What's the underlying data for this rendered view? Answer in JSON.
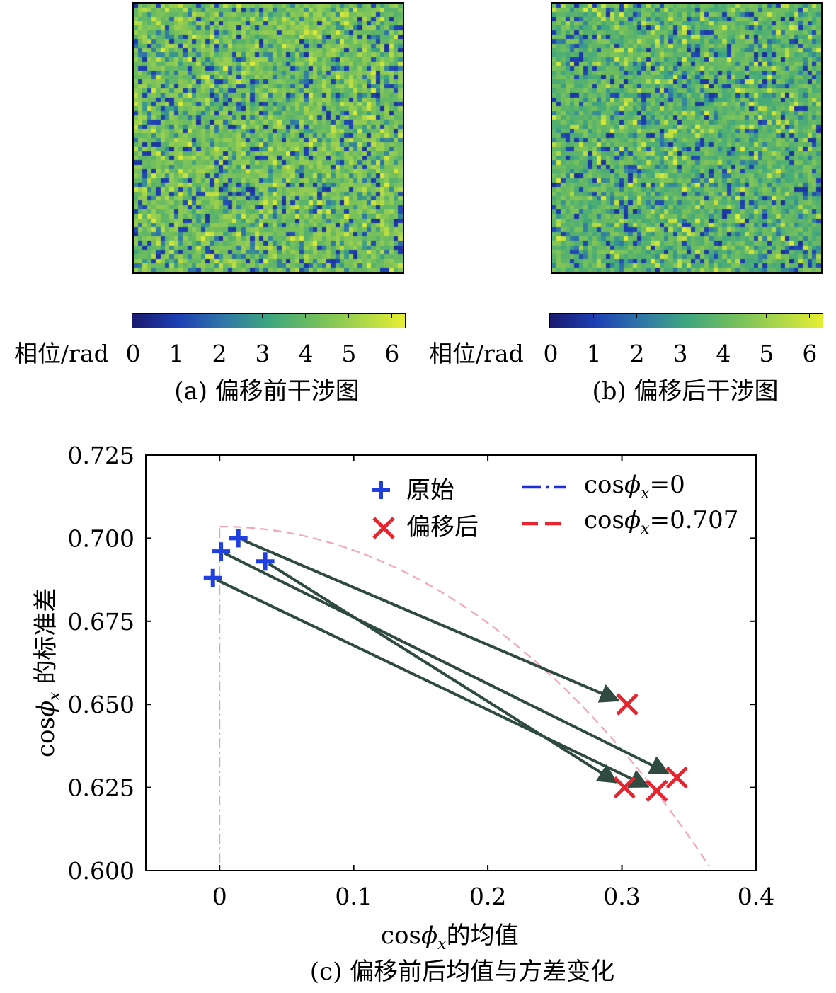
{
  "colormap": [
    "#1a1a6e",
    "#1d3fb3",
    "#2f76a8",
    "#3ea67f",
    "#6fbd5e",
    "#a9d64a",
    "#e6ee33"
  ],
  "panel_a": {
    "caption": "(a) 偏移前干涉图",
    "colorbar_label": "相位/rad",
    "colorbar_ticks": [
      "0",
      "1",
      "2",
      "3",
      "4",
      "5",
      "6"
    ]
  },
  "panel_b": {
    "caption": "(b) 偏移后干涉图",
    "colorbar_label": "相位/rad",
    "colorbar_ticks": [
      "0",
      "1",
      "2",
      "3",
      "4",
      "5",
      "6"
    ]
  },
  "panel_c": {
    "caption": "(c) 偏移前后均值与方差变化"
  },
  "chart_data": [
    {
      "type": "heatmap",
      "title": "(a) 偏移前干涉图",
      "colorbar_label": "相位/rad",
      "value_range": [
        0,
        6.28
      ],
      "colorbar_ticks": [
        0,
        1,
        2,
        3,
        4,
        5,
        6
      ]
    },
    {
      "type": "heatmap",
      "title": "(b) 偏移后干涉图",
      "colorbar_label": "相位/rad",
      "value_range": [
        0,
        6.28
      ],
      "colorbar_ticks": [
        0,
        1,
        2,
        3,
        4,
        5,
        6
      ]
    },
    {
      "type": "scatter",
      "title": "(c) 偏移前后均值与方差变化",
      "xlabel_prefix": "cos",
      "xlabel_symbol": "ϕ",
      "xlabel_sub": "x",
      "xlabel_suffix": "的均值",
      "ylabel_prefix": "cos",
      "ylabel_symbol": "ϕ",
      "ylabel_sub": "x",
      "ylabel_suffix": " 的标准差",
      "xlim": [
        -0.055,
        0.4
      ],
      "ylim": [
        0.6,
        0.725
      ],
      "xticks": [
        0,
        0.1,
        0.2,
        0.3,
        0.4
      ],
      "xtick_labels": [
        "0",
        "0.1",
        "0.2",
        "0.3",
        "0.4"
      ],
      "yticks": [
        0.6,
        0.625,
        0.65,
        0.675,
        0.7,
        0.725
      ],
      "ytick_labels": [
        "0.600",
        "0.625",
        "0.650",
        "0.675",
        "0.700",
        "0.725"
      ],
      "grid": false,
      "legend_position": "top",
      "series": [
        {
          "name": "原始",
          "marker": "plus",
          "color": "#1f3fe0",
          "x": [
            -0.005,
            0.001,
            0.014,
            0.034
          ],
          "y": [
            0.688,
            0.696,
            0.7,
            0.693
          ]
        },
        {
          "name": "偏移后",
          "marker": "x",
          "color": "#e8242e",
          "x": [
            0.302,
            0.326,
            0.304,
            0.341
          ],
          "y": [
            0.625,
            0.624,
            0.65,
            0.628
          ]
        }
      ],
      "arrows_color": "#2f4a3e",
      "reference_lines": [
        {
          "name_prefix": "cos",
          "symbol": "ϕ",
          "sub": "x",
          "value": "=0",
          "style": "dash-dot",
          "color": "#1f2fd6",
          "x": 0,
          "y_top": 0.703
        },
        {
          "name_prefix": "cos",
          "symbol": "ϕ",
          "sub": "x",
          "value": "=0.707",
          "style": "dashed",
          "color": "#e8242e",
          "radius": 0.7035
        }
      ]
    }
  ]
}
